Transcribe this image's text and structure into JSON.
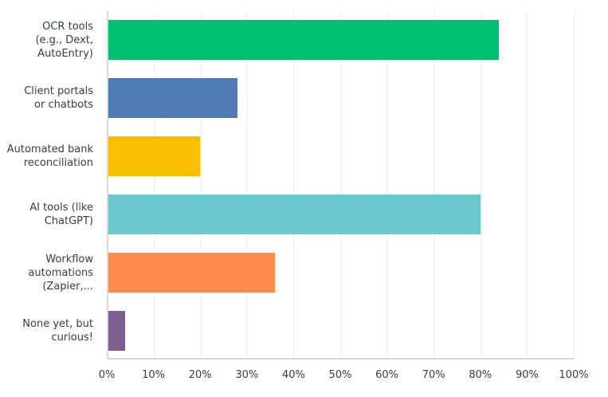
{
  "chart_data": {
    "type": "bar",
    "orientation": "horizontal",
    "categories": [
      "OCR tools (e.g., Dext, AutoEntry)",
      "Client portals or chatbots",
      "Automated bank reconciliation",
      "AI tools (like ChatGPT)",
      "Workflow automations (Zapier,...",
      "None yet, but curious!"
    ],
    "category_lines": [
      [
        "OCR tools",
        "(e.g., Dext,",
        "AutoEntry)"
      ],
      [
        "Client portals",
        "or chatbots"
      ],
      [
        "Automated bank",
        "reconciliation"
      ],
      [
        "AI tools (like",
        "ChatGPT)"
      ],
      [
        "Workflow",
        "automations",
        "(Zapier,..."
      ],
      [
        "None yet, but",
        "curious!"
      ]
    ],
    "values": [
      84,
      28,
      20,
      80,
      36,
      4
    ],
    "colors": [
      "#00bf6f",
      "#507cb6",
      "#f9be00",
      "#6bc8cd",
      "#ff8b4f",
      "#7d5e90"
    ],
    "xlim": [
      0,
      100
    ],
    "xticks": [
      "0%",
      "10%",
      "20%",
      "30%",
      "40%",
      "50%",
      "60%",
      "70%",
      "80%",
      "90%",
      "100%"
    ],
    "title": "",
    "xlabel": "",
    "ylabel": "",
    "grid": true,
    "legend": "none"
  }
}
